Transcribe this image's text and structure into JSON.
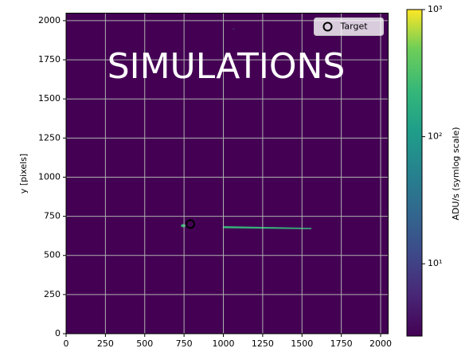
{
  "chart_data": {
    "type": "image",
    "ylabel": "y [pixels]",
    "annotation": "SIMULATIONS",
    "background": "#440154",
    "grid": true,
    "legend": "upper right",
    "xlim": [
      0,
      2048
    ],
    "ylim": [
      0,
      2048
    ],
    "xticks": [
      0,
      250,
      500,
      750,
      1000,
      1250,
      1500,
      1750,
      2000
    ],
    "yticks": [
      0,
      250,
      500,
      750,
      1000,
      1250,
      1500,
      1750,
      2000
    ],
    "series": [
      {
        "name": "Target",
        "color": "#000000",
        "x": [
          790
        ],
        "y": [
          700
        ]
      }
    ],
    "colorbar": {
      "label": "ADU/s (symlog scale)",
      "scale": "log",
      "lim": [
        2.7,
        1000
      ],
      "ticks": [
        {
          "value": 10,
          "label": "10¹"
        },
        {
          "value": 100,
          "label": "10²"
        },
        {
          "value": 1000,
          "label": "10³"
        }
      ]
    }
  }
}
